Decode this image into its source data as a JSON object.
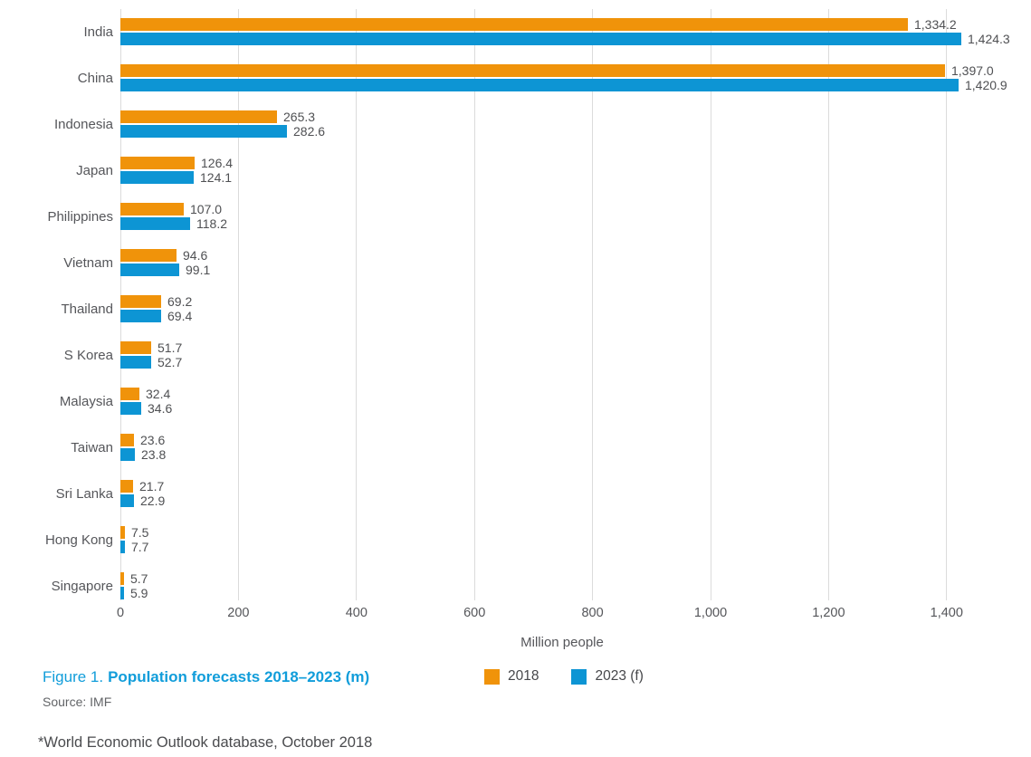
{
  "chart_data": {
    "type": "bar",
    "orientation": "horizontal",
    "title": "Population forecasts 2018–2023 (m)",
    "categories": [
      "India",
      "China",
      "Indonesia",
      "Japan",
      "Philippines",
      "Vietnam",
      "Thailand",
      "S Korea",
      "Malaysia",
      "Taiwan",
      "Sri Lanka",
      "Hong Kong",
      "Singapore"
    ],
    "series": [
      {
        "name": "2018",
        "color": "#F0930A",
        "values": [
          1334.2,
          1397.0,
          265.3,
          126.4,
          107.0,
          94.6,
          69.2,
          51.7,
          32.4,
          23.6,
          21.7,
          7.5,
          5.7
        ],
        "labels": [
          "1,334.2",
          "1,397.0",
          "265.3",
          "126.4",
          "107.0",
          "94.6",
          "69.2",
          "51.7",
          "32.4",
          "23.6",
          "21.7",
          "7.5",
          "5.7"
        ]
      },
      {
        "name": "2023 (f)",
        "color": "#0D95D4",
        "values": [
          1424.3,
          1420.9,
          282.6,
          124.1,
          118.2,
          99.1,
          69.4,
          52.7,
          34.6,
          23.8,
          22.9,
          7.7,
          5.9
        ],
        "labels": [
          "1,424.3",
          "1,420.9",
          "282.6",
          "124.1",
          "118.2",
          "99.1",
          "69.4",
          "52.7",
          "34.6",
          "23.8",
          "22.9",
          "7.7",
          "5.9"
        ]
      }
    ],
    "xlabel": "Million people",
    "xlim": [
      0,
      1496
    ],
    "xticks": [
      0,
      200,
      400,
      600,
      800,
      1000,
      1200,
      1400
    ],
    "xtick_labels": [
      "0",
      "200",
      "400",
      "600",
      "800",
      "1,000",
      "1,200",
      "1,400"
    ],
    "grid": "vertical-only",
    "legend_position": "bottom-center",
    "value_labels": "outside-end"
  },
  "caption": {
    "figure_label": "Figure 1.",
    "title": "Population forecasts 2018–2023 (m)",
    "source": "Source: IMF"
  },
  "footnote": "*World Economic Outlook database, October 2018",
  "colors": {
    "bar_2018": "#F0930A",
    "bar_2023": "#0D95D4",
    "caption_blue": "#119DDA",
    "gridline": "#DBDBDB"
  }
}
